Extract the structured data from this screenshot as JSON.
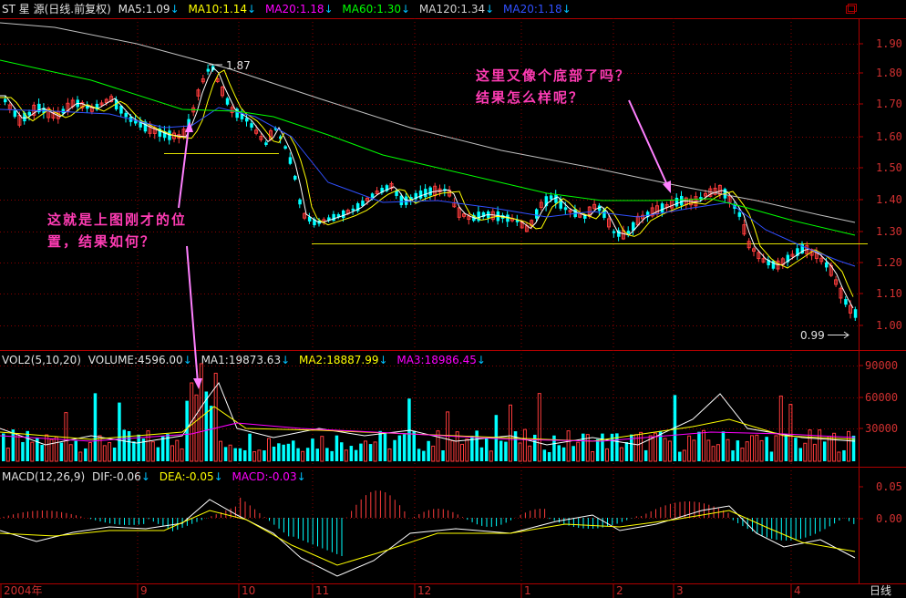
{
  "price_header": {
    "symbol": "ST 星 源(日线.前复权)",
    "ma5": "MA5:1.09",
    "ma10": "MA10:1.14",
    "ma20": "MA20:1.18",
    "ma60": "MA60:1.30",
    "ma120": "MA120:1.34",
    "ma20b": "MA20:1.18",
    "arrow": "↓"
  },
  "volume_header": {
    "name": "VOL2(5,10,20)",
    "volume": "VOLUME:4596.00",
    "ma1": "MA1:19873.63",
    "ma2": "MA2:18887.99",
    "ma3": "MA3:18986.45",
    "arrow": "↓"
  },
  "macd_header": {
    "name": "MACD(12,26,9)",
    "dif": "DIF:-0.06",
    "dea": "DEA:-0.05",
    "macd": "MACD:-0.03",
    "arrow": "↓"
  },
  "price_axis": [
    "1.90",
    "1.80",
    "1.70",
    "1.60",
    "1.50",
    "1.40",
    "1.30",
    "1.20",
    "1.10",
    "1.00"
  ],
  "volume_axis": [
    "90000",
    "60000",
    "30000"
  ],
  "macd_axis": [
    "0.05",
    "0.00"
  ],
  "x_axis": [
    "2004年",
    "9",
    "10",
    "11",
    "12",
    "1",
    "2",
    "3",
    "4"
  ],
  "period_label": "日线",
  "price_marks": {
    "high": "1.87",
    "low": "0.99"
  },
  "annotations": {
    "left_line1": "这就是上图刚才的位",
    "left_line2": "置，结果如何？",
    "right_line1": "这里又像个底部了吗？",
    "right_line2": "结果怎么样呢？"
  },
  "colors": {
    "up": "#ff3c3c",
    "down": "#00ffff",
    "ma5": "#ffffff",
    "ma10": "#ffff00",
    "ma20": "#ff00ff",
    "ma60": "#00ff00",
    "ma120": "#c0c0c0",
    "ma20b": "#3050ff",
    "axis": "#b00000",
    "annotation": "#ff3cb4"
  },
  "window_icon": "restore-icon"
}
